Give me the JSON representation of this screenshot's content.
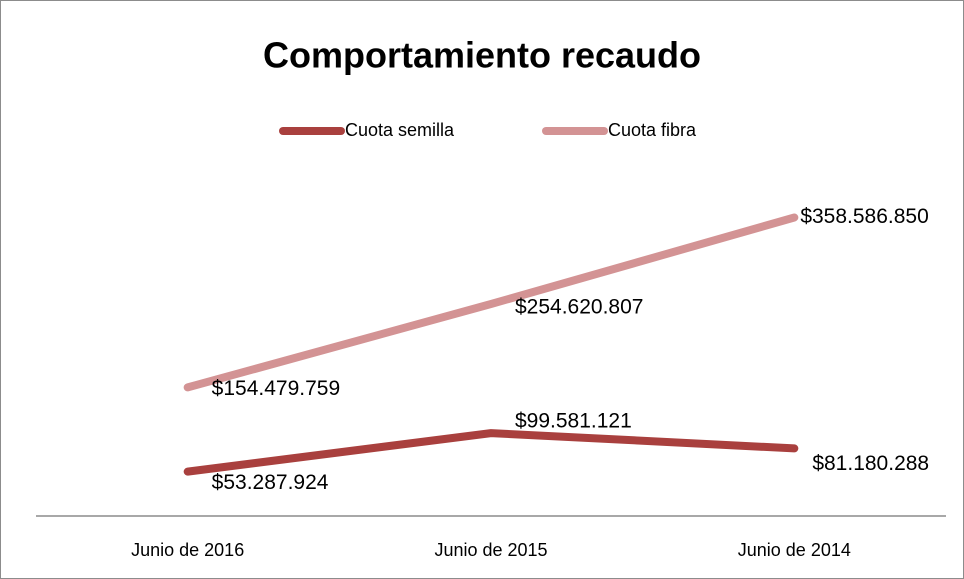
{
  "chart_data": {
    "type": "line",
    "title": "Comportamiento recaudo",
    "categories": [
      "Junio de 2016",
      "Junio de 2015",
      "Junio de 2014"
    ],
    "series": [
      {
        "name": "Cuota semilla",
        "color": "#a9403e",
        "values": [
          53287924,
          99581121,
          81180288
        ],
        "value_labels": [
          "$53.287.924",
          "$99.581.121",
          "$81.180.288"
        ]
      },
      {
        "name": "Cuota fibra",
        "color": "#d39394",
        "values": [
          154479759,
          254620807,
          358586850
        ],
        "value_labels": [
          "$154.479.759",
          "$254.620.807",
          "$358.586.850"
        ]
      }
    ],
    "ylim": [
      0,
      400000000
    ],
    "legend": "top"
  }
}
